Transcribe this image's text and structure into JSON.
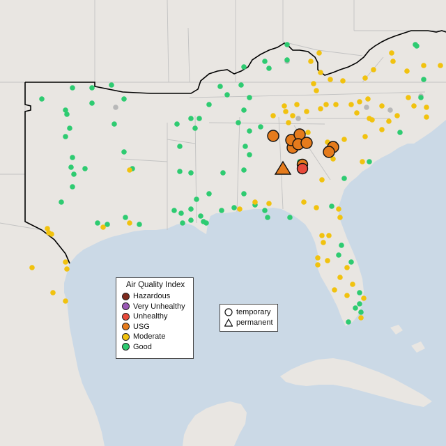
{
  "legend": {
    "title": "Air Quality Index",
    "categories": [
      {
        "label": "Hazardous",
        "color": "#7e2a1e"
      },
      {
        "label": "Very Unhealthy",
        "color": "#9a59b5"
      },
      {
        "label": "Unhealthy",
        "color": "#e84a3b"
      },
      {
        "label": "USG",
        "color": "#e57b1c"
      },
      {
        "label": "Moderate",
        "color": "#f1c20f"
      },
      {
        "label": "Good",
        "color": "#2ecb71"
      }
    ]
  },
  "type_legend": {
    "items": [
      {
        "label": "temporary",
        "icon": "circle-icon"
      },
      {
        "label": "permanent",
        "icon": "triangle-icon"
      }
    ]
  },
  "colors": {
    "land": "#e9e6e2",
    "water": "#cbd9e6",
    "state_border": "#bcbcbc",
    "highlight_border": "#000000",
    "unknown": "#b8b8b8"
  }
}
